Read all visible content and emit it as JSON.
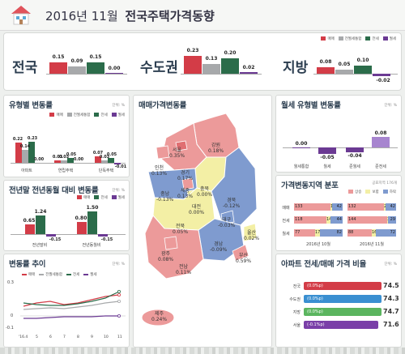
{
  "header": {
    "title_plain": "2016년 11월",
    "title_bold": "전국주택가격동향"
  },
  "colors": {
    "maemae": "#d33c47",
    "jeonse_sale": "#a7a9ab",
    "jeonse": "#2b6c4a",
    "wolse": "#6b3a93",
    "red_region": "#ec9a9a",
    "blue_region": "#7f9bcf",
    "yellow_region": "#f3efa5"
  },
  "top_legend": [
    "매매",
    "전월세통합",
    "전세",
    "월세"
  ],
  "top_groups": [
    {
      "label": "전국",
      "values": [
        "0.15",
        "0.09",
        "0.15",
        "0.00"
      ]
    },
    {
      "label": "수도권",
      "values": [
        "0.23",
        "0.13",
        "0.20",
        "0.02"
      ]
    },
    {
      "label": "지방",
      "values": [
        "0.08",
        "0.05",
        "0.10",
        "-0.02"
      ]
    }
  ],
  "type_panel": {
    "title": "유형별 변동률",
    "unit": "단위: %",
    "legend": [
      "매매",
      "전월세통합",
      "전세",
      "월세"
    ],
    "categories": [
      "아파트",
      "연립주택",
      "단독주택"
    ],
    "values": [
      [
        "0.22",
        "0.14",
        "0.23",
        "0.00"
      ],
      [
        "0.03",
        "0.03",
        "0.05",
        "0.00"
      ],
      [
        "0.07",
        "0.03",
        "0.05",
        "-0.01"
      ]
    ]
  },
  "yoy_panel": {
    "title": "전년말 전년동월 대비 변동률",
    "unit": "단위: %",
    "legend": [
      "매매",
      "전세",
      "월세"
    ],
    "categories": [
      "전년말비",
      "전년동월비"
    ],
    "values": [
      [
        "0.65",
        "1.24",
        "-0.15"
      ],
      [
        "0.80",
        "1.50",
        "-0.15"
      ]
    ]
  },
  "trend_panel": {
    "title": "변동률 추이",
    "unit": "단위: %",
    "legend": [
      "매매",
      "전월세통합",
      "전세",
      "월세"
    ],
    "x_labels": [
      "'16.4",
      "5",
      "6",
      "7",
      "8",
      "9",
      "10",
      "11"
    ],
    "y_labels": [
      "0.3",
      "0",
      "-0.1"
    ]
  },
  "map_panel": {
    "title": "매매가격변동률",
    "regions": [
      {
        "name": "서울",
        "value": "0.35%"
      },
      {
        "name": "강원",
        "value": "0.18%"
      },
      {
        "name": "인천",
        "value": "0.13%"
      },
      {
        "name": "경기",
        "value": "0.17%"
      },
      {
        "name": "충북",
        "value": "0.00%"
      },
      {
        "name": "충남",
        "value": "-0.13%"
      },
      {
        "name": "세종",
        "value": "0.13%"
      },
      {
        "name": "대전",
        "value": "0.00%"
      },
      {
        "name": "경북",
        "value": "-0.12%"
      },
      {
        "name": "대구",
        "value": "-0.03%"
      },
      {
        "name": "전북",
        "value": "0.05%"
      },
      {
        "name": "울산",
        "value": "0.02%"
      },
      {
        "name": "경남",
        "value": "-0.09%"
      },
      {
        "name": "부산",
        "value": "0.59%"
      },
      {
        "name": "광주",
        "value": "0.08%"
      },
      {
        "name": "전남",
        "value": "0.11%"
      },
      {
        "name": "제주",
        "value": "0.24%"
      }
    ]
  },
  "wolse_panel": {
    "title": "월세 유형별 변동률",
    "unit": "단위: %",
    "categories": [
      "월세통합",
      "월세",
      "준월세",
      "준전세"
    ],
    "values": [
      "0.00",
      "-0.05",
      "-0.04",
      "0.08"
    ]
  },
  "dist_panel": {
    "title": "가격변동지역 분포",
    "unit": "공표지역 176개",
    "legend": [
      "상승",
      "보합",
      "하락"
    ],
    "rows": [
      {
        "label": "매매",
        "left": [
          "133",
          "1",
          "42"
        ],
        "right": [
          "132",
          "2",
          "42"
        ]
      },
      {
        "label": "전세",
        "left": [
          "118",
          "14",
          "44"
        ],
        "right": [
          "144",
          "3",
          "29"
        ]
      },
      {
        "label": "월세",
        "left": [
          "77",
          "17",
          "82"
        ],
        "right": [
          "88",
          "16",
          "72"
        ]
      }
    ],
    "col_labels": [
      "2016년 10월",
      "2016년 11월"
    ]
  },
  "ratio_panel": {
    "title": "아파트 전세/매매 가격 비율",
    "unit": "단위: %",
    "rows": [
      {
        "label": "전국",
        "change": "(0.0%p)",
        "value": "74.5"
      },
      {
        "label": "수도권",
        "change": "(0.0%p)",
        "value": "74.3"
      },
      {
        "label": "지방",
        "change": "(0.0%p)",
        "value": "74.7"
      },
      {
        "label": "서울",
        "change": "(-0.1%p)",
        "value": "71.6"
      }
    ]
  }
}
